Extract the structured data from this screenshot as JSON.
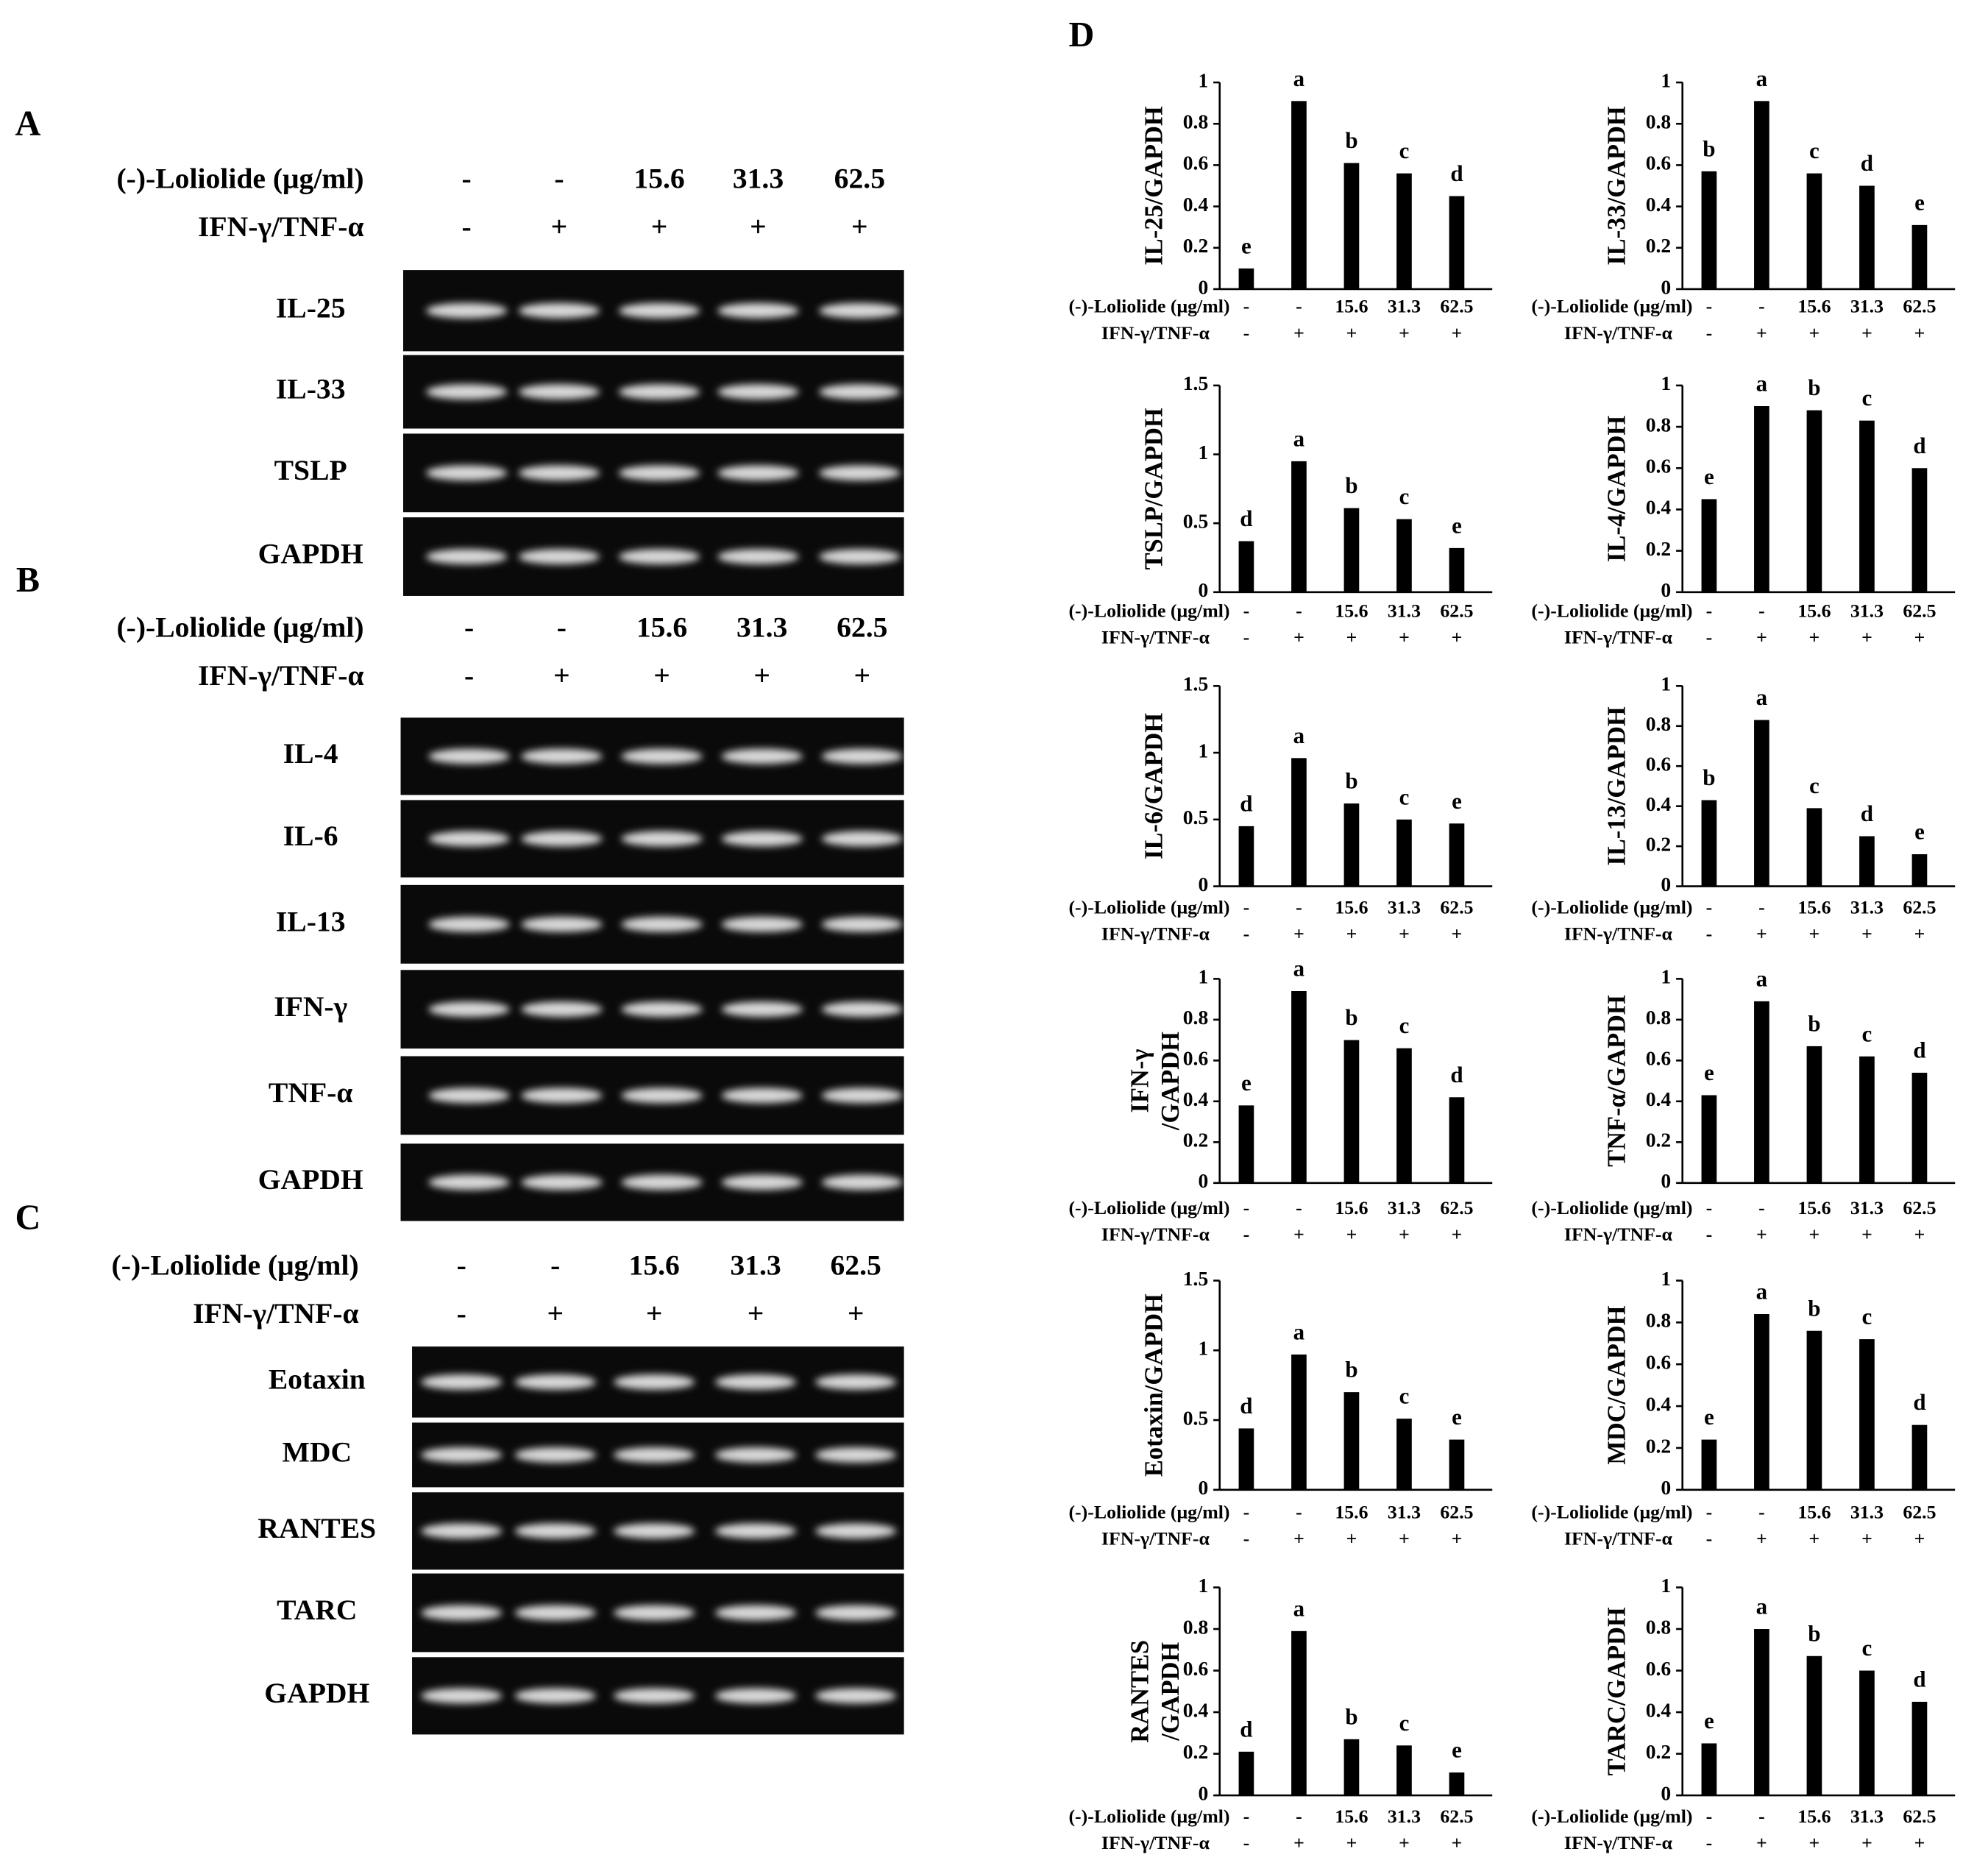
{
  "panel_label_d": "D",
  "gels": [
    {
      "label": "A",
      "header": [
        {
          "name": "(-)-Loliolide (μg/ml)",
          "lanes": [
            "-",
            "-",
            "15.6",
            "31.3",
            "62.5"
          ]
        },
        {
          "name": "IFN-γ/TNF-α",
          "lanes": [
            "-",
            "+",
            "+",
            "+",
            "+"
          ]
        }
      ],
      "rows": [
        "IL-25",
        "IL-33",
        "TSLP",
        "GAPDH"
      ]
    },
    {
      "label": "B",
      "header": [
        {
          "name": "(-)-Loliolide (μg/ml)",
          "lanes": [
            "-",
            "-",
            "15.6",
            "31.3",
            "62.5"
          ]
        },
        {
          "name": "IFN-γ/TNF-α",
          "lanes": [
            "-",
            "+",
            "+",
            "+",
            "+"
          ]
        }
      ],
      "rows": [
        "IL-4",
        "IL-6",
        "IL-13",
        "IFN-γ",
        "TNF-α",
        "GAPDH"
      ]
    },
    {
      "label": "C",
      "header": [
        {
          "name": "(-)-Loliolide (μg/ml)",
          "lanes": [
            "-",
            "-",
            "15.6",
            "31.3",
            "62.5"
          ]
        },
        {
          "name": "IFN-γ/TNF-α",
          "lanes": [
            "-",
            "+",
            "+",
            "+",
            "+"
          ]
        }
      ],
      "rows": [
        "Eotaxin",
        "MDC",
        "RANTES",
        "TARC",
        "GAPDH"
      ]
    }
  ],
  "chart_data": [
    {
      "type": "bar",
      "ylabel": "IL-25/GAPDH",
      "category_names": [
        "(-)-Loliolide (μg/ml)",
        "IFN-γ/TNF-α"
      ],
      "categories": [
        "-",
        "-",
        "15.6",
        "31.3",
        "62.5"
      ],
      "categories2": [
        "-",
        "+",
        "+",
        "+",
        "+"
      ],
      "values": [
        0.1,
        0.91,
        0.61,
        0.56,
        0.45
      ],
      "letters": [
        "e",
        "a",
        "b",
        "c",
        "d"
      ],
      "color": "#000000",
      "ylim": [
        0,
        1
      ],
      "yticks": [
        0,
        0.2,
        0.4,
        0.6,
        0.8,
        1
      ]
    },
    {
      "type": "bar",
      "ylabel": "IL-33/GAPDH",
      "category_names": [
        "(-)-Loliolide (μg/ml)",
        "IFN-γ/TNF-α"
      ],
      "categories": [
        "-",
        "-",
        "15.6",
        "31.3",
        "62.5"
      ],
      "categories2": [
        "-",
        "+",
        "+",
        "+",
        "+"
      ],
      "values": [
        0.57,
        0.91,
        0.56,
        0.5,
        0.31
      ],
      "letters": [
        "b",
        "a",
        "c",
        "d",
        "e"
      ],
      "color": "#000000",
      "ylim": [
        0,
        1
      ],
      "yticks": [
        0,
        0.2,
        0.4,
        0.6,
        0.8,
        1
      ]
    },
    {
      "type": "bar",
      "ylabel": "TSLP/GAPDH",
      "category_names": [
        "(-)-Loliolide (μg/ml)",
        "IFN-γ/TNF-α"
      ],
      "categories": [
        "-",
        "-",
        "15.6",
        "31.3",
        "62.5"
      ],
      "categories2": [
        "-",
        "+",
        "+",
        "+",
        "+"
      ],
      "values": [
        0.37,
        0.95,
        0.61,
        0.53,
        0.32
      ],
      "letters": [
        "d",
        "a",
        "b",
        "c",
        "e"
      ],
      "color": "#000000",
      "ylim": [
        0,
        1.5
      ],
      "yticks": [
        0,
        0.5,
        1,
        1.5
      ]
    },
    {
      "type": "bar",
      "ylabel": "IL-4/GAPDH",
      "category_names": [
        "(-)-Loliolide (μg/ml)",
        "IFN-γ/TNF-α"
      ],
      "categories": [
        "-",
        "-",
        "15.6",
        "31.3",
        "62.5"
      ],
      "categories2": [
        "-",
        "+",
        "+",
        "+",
        "+"
      ],
      "values": [
        0.45,
        0.9,
        0.88,
        0.83,
        0.6
      ],
      "letters": [
        "e",
        "a",
        "b",
        "c",
        "d"
      ],
      "color": "#000000",
      "ylim": [
        0,
        1
      ],
      "yticks": [
        0,
        0.2,
        0.4,
        0.6,
        0.8,
        1
      ]
    },
    {
      "type": "bar",
      "ylabel": "IL-6/GAPDH",
      "category_names": [
        "(-)-Loliolide (μg/ml)",
        "IFN-γ/TNF-α"
      ],
      "categories": [
        "-",
        "-",
        "15.6",
        "31.3",
        "62.5"
      ],
      "categories2": [
        "-",
        "+",
        "+",
        "+",
        "+"
      ],
      "values": [
        0.45,
        0.96,
        0.62,
        0.5,
        0.47
      ],
      "letters": [
        "d",
        "a",
        "b",
        "c",
        "e"
      ],
      "color": "#000000",
      "ylim": [
        0,
        1.5
      ],
      "yticks": [
        0,
        0.5,
        1,
        1.5
      ]
    },
    {
      "type": "bar",
      "ylabel": "IL-13/GAPDH",
      "category_names": [
        "(-)-Loliolide (μg/ml)",
        "IFN-γ/TNF-α"
      ],
      "categories": [
        "-",
        "-",
        "15.6",
        "31.3",
        "62.5"
      ],
      "categories2": [
        "-",
        "+",
        "+",
        "+",
        "+"
      ],
      "values": [
        0.43,
        0.83,
        0.39,
        0.25,
        0.16
      ],
      "letters": [
        "b",
        "a",
        "c",
        "d",
        "e"
      ],
      "color": "#000000",
      "ylim": [
        0,
        1
      ],
      "yticks": [
        0,
        0.2,
        0.4,
        0.6,
        0.8,
        1
      ]
    },
    {
      "type": "bar",
      "ylabel": [
        "IFN-γ",
        "/GAPDH"
      ],
      "category_names": [
        "(-)-Loliolide (μg/ml)",
        "IFN-γ/TNF-α"
      ],
      "categories": [
        "-",
        "-",
        "15.6",
        "31.3",
        "62.5"
      ],
      "categories2": [
        "-",
        "+",
        "+",
        "+",
        "+"
      ],
      "values": [
        0.38,
        0.94,
        0.7,
        0.66,
        0.42
      ],
      "letters": [
        "e",
        "a",
        "b",
        "c",
        "d"
      ],
      "color": "#000000",
      "ylim": [
        0,
        1
      ],
      "yticks": [
        0,
        0.2,
        0.4,
        0.6,
        0.8,
        1
      ]
    },
    {
      "type": "bar",
      "ylabel": "TNF-α/GAPDH",
      "category_names": [
        "(-)-Loliolide (μg/ml)",
        "IFN-γ/TNF-α"
      ],
      "categories": [
        "-",
        "-",
        "15.6",
        "31.3",
        "62.5"
      ],
      "categories2": [
        "-",
        "+",
        "+",
        "+",
        "+"
      ],
      "values": [
        0.43,
        0.89,
        0.67,
        0.62,
        0.54
      ],
      "letters": [
        "e",
        "a",
        "b",
        "c",
        "d"
      ],
      "color": "#000000",
      "ylim": [
        0,
        1
      ],
      "yticks": [
        0,
        0.2,
        0.4,
        0.6,
        0.8,
        1
      ]
    },
    {
      "type": "bar",
      "ylabel": "Eotaxin/GAPDH",
      "category_names": [
        "(-)-Loliolide (μg/ml)",
        "IFN-γ/TNF-α"
      ],
      "categories": [
        "-",
        "-",
        "15.6",
        "31.3",
        "62.5"
      ],
      "categories2": [
        "-",
        "+",
        "+",
        "+",
        "+"
      ],
      "values": [
        0.44,
        0.97,
        0.7,
        0.51,
        0.36
      ],
      "letters": [
        "d",
        "a",
        "b",
        "c",
        "e"
      ],
      "color": "#000000",
      "ylim": [
        0,
        1.5
      ],
      "yticks": [
        0,
        0.5,
        1,
        1.5
      ]
    },
    {
      "type": "bar",
      "ylabel": "MDC/GAPDH",
      "category_names": [
        "(-)-Loliolide (μg/ml)",
        "IFN-γ/TNF-α"
      ],
      "categories": [
        "-",
        "-",
        "15.6",
        "31.3",
        "62.5"
      ],
      "categories2": [
        "-",
        "+",
        "+",
        "+",
        "+"
      ],
      "values": [
        0.24,
        0.84,
        0.76,
        0.72,
        0.31
      ],
      "letters": [
        "e",
        "a",
        "b",
        "c",
        "d"
      ],
      "color": "#000000",
      "ylim": [
        0,
        1
      ],
      "yticks": [
        0,
        0.2,
        0.4,
        0.6,
        0.8,
        1
      ]
    },
    {
      "type": "bar",
      "ylabel": [
        "RANTES",
        "/GAPDH"
      ],
      "category_names": [
        "(-)-Loliolide (μg/ml)",
        "IFN-γ/TNF-α"
      ],
      "categories": [
        "-",
        "-",
        "15.6",
        "31.3",
        "62.5"
      ],
      "categories2": [
        "-",
        "+",
        "+",
        "+",
        "+"
      ],
      "values": [
        0.21,
        0.79,
        0.27,
        0.24,
        0.11
      ],
      "letters": [
        "d",
        "a",
        "b",
        "c",
        "e"
      ],
      "color": "#000000",
      "ylim": [
        0,
        1
      ],
      "yticks": [
        0,
        0.2,
        0.4,
        0.6,
        0.8,
        1
      ]
    },
    {
      "type": "bar",
      "ylabel": "TARC/GAPDH",
      "category_names": [
        "(-)-Loliolide (μg/ml)",
        "IFN-γ/TNF-α"
      ],
      "categories": [
        "-",
        "-",
        "15.6",
        "31.3",
        "62.5"
      ],
      "categories2": [
        "-",
        "+",
        "+",
        "+",
        "+"
      ],
      "values": [
        0.25,
        0.8,
        0.67,
        0.6,
        0.45
      ],
      "letters": [
        "e",
        "a",
        "b",
        "c",
        "d"
      ],
      "color": "#000000",
      "ylim": [
        0,
        1
      ],
      "yticks": [
        0,
        0.2,
        0.4,
        0.6,
        0.8,
        1
      ]
    }
  ]
}
